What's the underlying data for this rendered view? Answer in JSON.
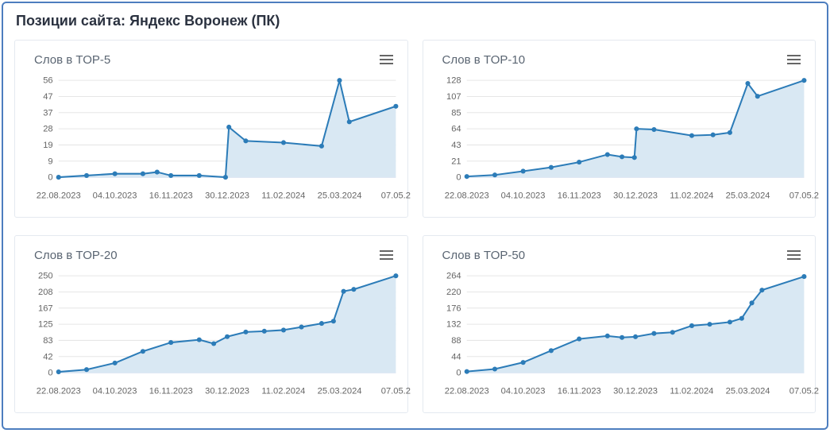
{
  "window": {
    "title": "Позиции сайта: Яндекс Воронеж (ПК)"
  },
  "icons": {
    "chart_context_menu": "hamburger-icon"
  },
  "colors": {
    "frame_border": "#4d7ebf",
    "card_border": "#e4e9f0",
    "series_line": "#2c7cb8",
    "series_fill": "#d9e8f3",
    "grid_line": "#e6e6e6",
    "axis_line": "#ccd6eb",
    "axis_text": "#666666",
    "chart_title_text": "#5a6572",
    "page_title_text": "#2b3240",
    "menu_icon": "#666666"
  },
  "chart_data": [
    {
      "type": "area",
      "title": "Слов в TOP-5",
      "legend": "none",
      "grid": true,
      "ylim": [
        0,
        56
      ],
      "y_ticks": [
        0,
        9,
        19,
        28,
        37,
        47,
        56
      ],
      "x_tick_labels": [
        "22.08.2023",
        "04.10.2023",
        "16.11.2023",
        "30.12.2023",
        "11.02.2024",
        "25.03.2024",
        "07.05.2"
      ],
      "points": [
        [
          0.0,
          0
        ],
        [
          0.083,
          1
        ],
        [
          0.167,
          2
        ],
        [
          0.25,
          2
        ],
        [
          0.292,
          3
        ],
        [
          0.333,
          1
        ],
        [
          0.417,
          1
        ],
        [
          0.495,
          0
        ],
        [
          0.505,
          29
        ],
        [
          0.555,
          21
        ],
        [
          0.667,
          20
        ],
        [
          0.78,
          18
        ],
        [
          0.833,
          56
        ],
        [
          0.862,
          32
        ],
        [
          1.0,
          41
        ]
      ]
    },
    {
      "type": "area",
      "title": "Слов в TOP-10",
      "legend": "none",
      "grid": true,
      "ylim": [
        0,
        128
      ],
      "y_ticks": [
        0,
        21,
        43,
        64,
        85,
        107,
        128
      ],
      "x_tick_labels": [
        "22.08.2023",
        "04.10.2023",
        "16.11.2023",
        "30.12.2023",
        "11.02.2024",
        "25.03.2024",
        "07.05.2"
      ],
      "points": [
        [
          0.0,
          1
        ],
        [
          0.083,
          3
        ],
        [
          0.167,
          8
        ],
        [
          0.25,
          13
        ],
        [
          0.333,
          20
        ],
        [
          0.417,
          30
        ],
        [
          0.46,
          27
        ],
        [
          0.497,
          26
        ],
        [
          0.503,
          64
        ],
        [
          0.555,
          63
        ],
        [
          0.667,
          55
        ],
        [
          0.73,
          56
        ],
        [
          0.78,
          59
        ],
        [
          0.833,
          124
        ],
        [
          0.862,
          107
        ],
        [
          1.0,
          128
        ]
      ]
    },
    {
      "type": "area",
      "title": "Слов в TOP-20",
      "legend": "none",
      "grid": true,
      "ylim": [
        0,
        250
      ],
      "y_ticks": [
        0,
        42,
        83,
        125,
        167,
        208,
        250
      ],
      "x_tick_labels": [
        "22.08.2023",
        "04.10.2023",
        "16.11.2023",
        "30.12.2023",
        "11.02.2024",
        "25.03.2024",
        "07.05.2"
      ],
      "points": [
        [
          0.0,
          2
        ],
        [
          0.083,
          8
        ],
        [
          0.167,
          25
        ],
        [
          0.25,
          55
        ],
        [
          0.333,
          78
        ],
        [
          0.417,
          85
        ],
        [
          0.46,
          75
        ],
        [
          0.5,
          93
        ],
        [
          0.555,
          105
        ],
        [
          0.61,
          107
        ],
        [
          0.667,
          110
        ],
        [
          0.72,
          118
        ],
        [
          0.78,
          127
        ],
        [
          0.815,
          133
        ],
        [
          0.845,
          210
        ],
        [
          0.875,
          215
        ],
        [
          1.0,
          250
        ]
      ]
    },
    {
      "type": "area",
      "title": "Слов в TOP-50",
      "legend": "none",
      "grid": true,
      "ylim": [
        0,
        264
      ],
      "y_ticks": [
        0,
        44,
        88,
        132,
        176,
        220,
        264
      ],
      "x_tick_labels": [
        "22.08.2023",
        "04.10.2023",
        "16.11.2023",
        "30.12.2023",
        "11.02.2024",
        "25.03.2024",
        "07.05.2"
      ],
      "points": [
        [
          0.0,
          3
        ],
        [
          0.083,
          10
        ],
        [
          0.167,
          28
        ],
        [
          0.25,
          60
        ],
        [
          0.333,
          92
        ],
        [
          0.417,
          100
        ],
        [
          0.46,
          96
        ],
        [
          0.5,
          98
        ],
        [
          0.555,
          107
        ],
        [
          0.61,
          110
        ],
        [
          0.667,
          128
        ],
        [
          0.72,
          132
        ],
        [
          0.78,
          138
        ],
        [
          0.815,
          148
        ],
        [
          0.845,
          190
        ],
        [
          0.875,
          225
        ],
        [
          1.0,
          262
        ]
      ]
    }
  ]
}
